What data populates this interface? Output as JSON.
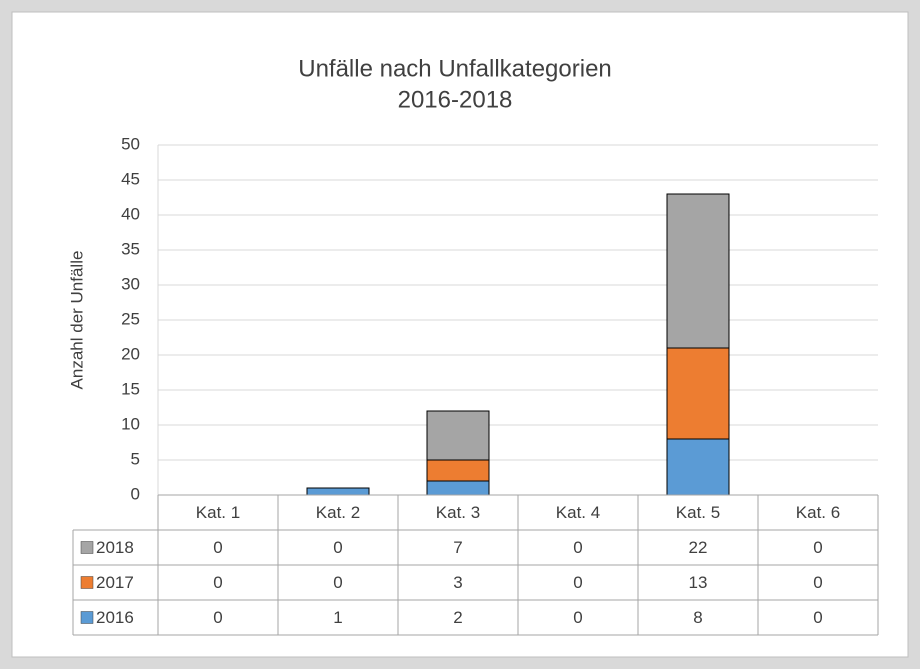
{
  "chart_data": {
    "type": "stacked_bar",
    "title": "Unfälle nach Unfallkategorien",
    "subtitle": "2016-2018",
    "y_label": "Anzahl der Unfälle",
    "categories": [
      "Kat. 1",
      "Kat. 2",
      "Kat. 3",
      "Kat. 4",
      "Kat. 5",
      "Kat. 6"
    ],
    "series": [
      {
        "name": "2016",
        "color": "#5b9bd5",
        "values": [
          0,
          1,
          2,
          0,
          8,
          0
        ]
      },
      {
        "name": "2017",
        "color": "#ed7d31",
        "values": [
          0,
          0,
          3,
          0,
          13,
          0
        ]
      },
      {
        "name": "2018",
        "color": "#a5a5a5",
        "values": [
          0,
          0,
          7,
          0,
          22,
          0
        ]
      }
    ],
    "ylim": [
      0,
      50
    ],
    "yticks": [
      0,
      5,
      10,
      15,
      20,
      25,
      30,
      35,
      40,
      45,
      50
    ],
    "grid": true,
    "data_table": true
  }
}
